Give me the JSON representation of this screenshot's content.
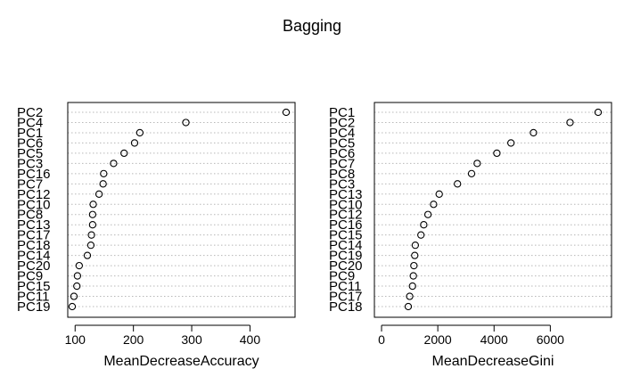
{
  "title": "Bagging",
  "chart_data": [
    {
      "type": "scatter",
      "variant": "dotchart",
      "title": "",
      "xlabel": "MeanDecreaseAccuracy",
      "ylabel": "",
      "categories": [
        "PC2",
        "PC4",
        "PC1",
        "PC6",
        "PC5",
        "PC3",
        "PC16",
        "PC7",
        "PC12",
        "PC10",
        "PC8",
        "PC13",
        "PC17",
        "PC18",
        "PC14",
        "PC20",
        "PC9",
        "PC15",
        "PC11",
        "PC19"
      ],
      "values": [
        462,
        290,
        211,
        202,
        184,
        166,
        149,
        148,
        141,
        131,
        130,
        130,
        128,
        127,
        121,
        107,
        104,
        103,
        98,
        95
      ],
      "xticks": [
        100,
        200,
        300,
        400
      ],
      "xlim": [
        95,
        462
      ],
      "grid": "dotted horizontal",
      "point_color": "#000000"
    },
    {
      "type": "scatter",
      "variant": "dotchart",
      "title": "",
      "xlabel": "MeanDecreaseGini",
      "ylabel": "",
      "categories": [
        "PC1",
        "PC2",
        "PC4",
        "PC5",
        "PC6",
        "PC7",
        "PC8",
        "PC3",
        "PC13",
        "PC10",
        "PC12",
        "PC16",
        "PC15",
        "PC14",
        "PC19",
        "PC20",
        "PC9",
        "PC11",
        "PC17",
        "PC18"
      ],
      "values": [
        7700,
        6700,
        5400,
        4600,
        4100,
        3400,
        3200,
        2700,
        2050,
        1850,
        1650,
        1500,
        1400,
        1200,
        1180,
        1150,
        1130,
        1100,
        1000,
        950
      ],
      "xticks": [
        0,
        2000,
        4000,
        6000
      ],
      "xlim": [
        950,
        7700
      ],
      "grid": "dotted horizontal",
      "point_color": "#000000"
    }
  ]
}
